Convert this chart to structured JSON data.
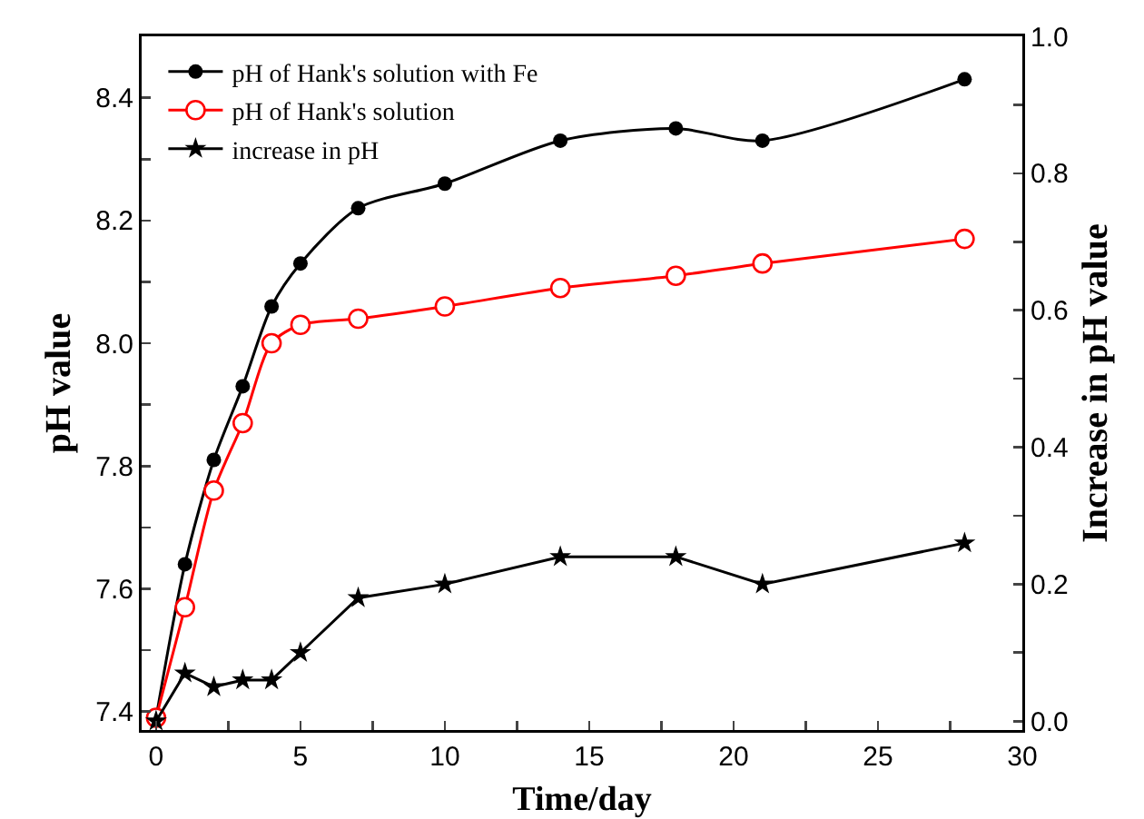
{
  "chart_data": {
    "type": "line",
    "xlabel": "Time/day",
    "ylabel": "pH value",
    "y2label": "Increase in pH value",
    "x": [
      0,
      1,
      2,
      3,
      4,
      5,
      7,
      10,
      14,
      18,
      21,
      28
    ],
    "xlim": [
      -0.5,
      30
    ],
    "xticks": [
      0,
      {
        "value": 2.5,
        "label": null
      },
      5,
      {
        "value": 7.5,
        "label": null
      },
      10,
      {
        "value": 12.5,
        "label": null
      },
      15,
      {
        "value": 17.5,
        "label": null
      },
      20,
      {
        "value": 22.5,
        "label": null
      },
      25,
      {
        "value": 27.5,
        "label": null
      },
      30
    ],
    "ylim": [
      7.37,
      8.5
    ],
    "yticks": [
      {
        "value": 7.4,
        "label": "7.4"
      },
      {
        "value": 7.5,
        "label": null
      },
      {
        "value": 7.6,
        "label": "7.6"
      },
      {
        "value": 7.7,
        "label": null
      },
      {
        "value": 7.8,
        "label": "7.8"
      },
      {
        "value": 7.9,
        "label": null
      },
      {
        "value": 8.0,
        "label": "8.0"
      },
      {
        "value": 8.1,
        "label": null
      },
      {
        "value": 8.2,
        "label": "8.2"
      },
      {
        "value": 8.3,
        "label": null
      },
      {
        "value": 8.4,
        "label": "8.4"
      }
    ],
    "y2lim": [
      -0.013,
      1.0
    ],
    "y2ticks": [
      {
        "value": 0,
        "label": "0.0"
      },
      {
        "value": 0.1,
        "label": null
      },
      {
        "value": 0.2,
        "label": "0.2"
      },
      {
        "value": 0.3,
        "label": null
      },
      {
        "value": 0.4,
        "label": "0.4"
      },
      {
        "value": 0.5,
        "label": null
      },
      {
        "value": 0.6,
        "label": "0.6"
      },
      {
        "value": 0.7,
        "label": null
      },
      {
        "value": 0.8,
        "label": "0.8"
      },
      {
        "value": 0.9,
        "label": null
      },
      {
        "value": 1.0,
        "label": "1.0"
      }
    ],
    "grid": false,
    "legend": "top left",
    "line_style": "solid",
    "series": [
      {
        "name": "pH of Hank's solution with Fe",
        "color": "#000000",
        "marker": "circle",
        "values": [
          7.39,
          7.64,
          7.81,
          7.93,
          8.06,
          8.13,
          8.22,
          8.26,
          8.33,
          8.35,
          8.33,
          8.43
        ]
      },
      {
        "name": "pH of Hank's solution",
        "color": "#ff0000",
        "marker": "circle-open",
        "values": [
          7.39,
          7.57,
          7.76,
          7.87,
          8.0,
          8.03,
          8.04,
          8.06,
          8.09,
          8.11,
          8.13,
          8.17
        ]
      },
      {
        "name": "increase in pH",
        "color": "#000000",
        "marker": "star",
        "axis": "y2",
        "values": [
          0.0,
          0.07,
          0.05,
          0.06,
          0.06,
          0.1,
          0.18,
          0.2,
          0.24,
          0.24,
          0.2,
          0.26
        ]
      }
    ]
  }
}
